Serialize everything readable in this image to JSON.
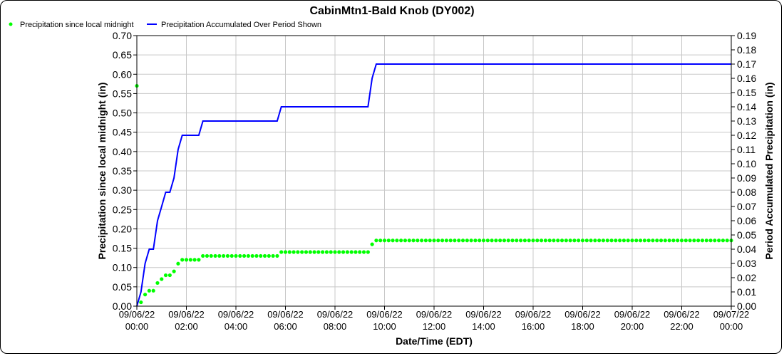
{
  "chart_data": {
    "type": "line",
    "title": "CabinMtn1-Bald Knob (DY002)",
    "xlabel": "Date/Time (EDT)",
    "ylabel_left": "Precipitation since local midnight (in)",
    "ylabel_right": "Period Accumulated Precipitation (in)",
    "x_start": "09/06/22 00:00",
    "x_end": "09/07/22 00:00",
    "x_interval_minutes": 10,
    "x_ticks": [
      [
        "09/06/22",
        "00:00"
      ],
      [
        "09/06/22",
        "02:00"
      ],
      [
        "09/06/22",
        "04:00"
      ],
      [
        "09/06/22",
        "06:00"
      ],
      [
        "09/06/22",
        "08:00"
      ],
      [
        "09/06/22",
        "10:00"
      ],
      [
        "09/06/22",
        "12:00"
      ],
      [
        "09/06/22",
        "14:00"
      ],
      [
        "09/06/22",
        "16:00"
      ],
      [
        "09/06/22",
        "18:00"
      ],
      [
        "09/06/22",
        "20:00"
      ],
      [
        "09/06/22",
        "22:00"
      ],
      [
        "09/07/22",
        "00:00"
      ]
    ],
    "ylim_left": [
      0,
      0.7
    ],
    "ylim_right": [
      0,
      0.19
    ],
    "y_ticks_left": [
      "0.00",
      "0.05",
      "0.10",
      "0.15",
      "0.20",
      "0.25",
      "0.30",
      "0.35",
      "0.40",
      "0.45",
      "0.50",
      "0.55",
      "0.60",
      "0.65",
      "0.70"
    ],
    "y_ticks_right": [
      "0.00",
      "0.01",
      "0.02",
      "0.03",
      "0.04",
      "0.05",
      "0.06",
      "0.07",
      "0.08",
      "0.09",
      "0.10",
      "0.11",
      "0.12",
      "0.13",
      "0.14",
      "0.15",
      "0.16",
      "0.17",
      "0.18",
      "0.19"
    ],
    "grid": true,
    "legend_position": "top-left",
    "series": [
      {
        "name": "Precipitation since local midnight",
        "kind": "points",
        "axis": "left",
        "color": "#00ff00",
        "runs": [
          [
            1,
            0.57
          ],
          [
            1,
            0.01
          ],
          [
            1,
            0.03
          ],
          [
            2,
            0.04
          ],
          [
            1,
            0.06
          ],
          [
            1,
            0.07
          ],
          [
            2,
            0.08
          ],
          [
            1,
            0.09
          ],
          [
            1,
            0.11
          ],
          [
            5,
            0.12
          ],
          [
            19,
            0.13
          ],
          [
            22,
            0.14
          ],
          [
            1,
            0.16
          ],
          [
            87,
            0.17
          ]
        ]
      },
      {
        "name": "Precipitation Accumulated Over Period Shown",
        "kind": "line",
        "axis": "right",
        "color": "#0000ff",
        "runs": [
          [
            1,
            0.0
          ],
          [
            1,
            0.01
          ],
          [
            1,
            0.03
          ],
          [
            2,
            0.04
          ],
          [
            1,
            0.06
          ],
          [
            1,
            0.07
          ],
          [
            2,
            0.08
          ],
          [
            1,
            0.09
          ],
          [
            1,
            0.11
          ],
          [
            5,
            0.12
          ],
          [
            19,
            0.13
          ],
          [
            22,
            0.14
          ],
          [
            1,
            0.16
          ],
          [
            87,
            0.17
          ]
        ]
      }
    ]
  }
}
